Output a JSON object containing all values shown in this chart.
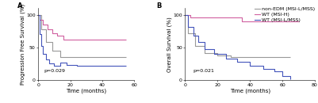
{
  "panel_A": {
    "title": "A",
    "xlabel": "Time (months)",
    "ylabel": "Progression Free Survival (%)",
    "pvalue": "p=0.029",
    "xlim": [
      0,
      60
    ],
    "ylim": [
      0,
      110
    ],
    "yticks": [
      0,
      50,
      100
    ],
    "xticks": [
      0,
      20,
      40,
      60
    ],
    "curves": {
      "pink": {
        "color": "#d060a0",
        "x": [
          0,
          1,
          1,
          3,
          3,
          6,
          6,
          9,
          9,
          12,
          12,
          16,
          16,
          55
        ],
        "y": [
          100,
          100,
          92,
          92,
          85,
          85,
          78,
          78,
          72,
          72,
          68,
          68,
          62,
          62
        ]
      },
      "gray": {
        "color": "#999999",
        "x": [
          0,
          2,
          2,
          5,
          5,
          9,
          9,
          14,
          14,
          55
        ],
        "y": [
          100,
          100,
          78,
          78,
          58,
          58,
          45,
          45,
          36,
          36
        ]
      },
      "blue": {
        "color": "#4455bb",
        "x": [
          0,
          1,
          1,
          2,
          2,
          3,
          3,
          5,
          5,
          7,
          7,
          10,
          10,
          14,
          14,
          18,
          18,
          24,
          24,
          55
        ],
        "y": [
          100,
          100,
          70,
          70,
          52,
          52,
          40,
          40,
          32,
          32,
          26,
          26,
          22,
          22,
          27,
          27,
          24,
          24,
          22,
          22
        ]
      }
    }
  },
  "panel_B": {
    "title": "B",
    "xlabel": "Time (months)",
    "ylabel": "Overall Survival (%)",
    "pvalue": "p=0.021",
    "xlim": [
      0,
      80
    ],
    "ylim": [
      0,
      110
    ],
    "yticks": [
      0,
      50,
      100
    ],
    "xticks": [
      0,
      20,
      40,
      60,
      80
    ],
    "curves": {
      "pink": {
        "color": "#d060a0",
        "x": [
          0,
          3,
          3,
          35,
          35,
          70
        ],
        "y": [
          100,
          100,
          96,
          96,
          90,
          90
        ]
      },
      "gray": {
        "color": "#999999",
        "x": [
          0,
          2,
          2,
          6,
          6,
          12,
          12,
          20,
          20,
          28,
          28,
          65
        ],
        "y": [
          100,
          100,
          72,
          72,
          52,
          52,
          42,
          42,
          38,
          38,
          35,
          35
        ]
      },
      "blue": {
        "color": "#4455bb",
        "x": [
          0,
          2,
          2,
          5,
          5,
          8,
          8,
          12,
          12,
          18,
          18,
          25,
          25,
          32,
          32,
          40,
          40,
          48,
          48,
          55,
          55,
          60,
          60,
          65,
          65
        ],
        "y": [
          100,
          100,
          82,
          82,
          68,
          68,
          58,
          58,
          48,
          48,
          40,
          40,
          33,
          33,
          28,
          28,
          22,
          22,
          18,
          18,
          14,
          14,
          6,
          6,
          2
        ]
      }
    },
    "legend": [
      {
        "label": "non-EDM (MSI-L/MSS)",
        "color": "#999999"
      },
      {
        "label": "WT (MSI-H)",
        "color": "#d060a0"
      },
      {
        "label": "WT (MSI-L/MSS)",
        "color": "#4455bb"
      }
    ]
  },
  "fig_width": 4.01,
  "fig_height": 1.3,
  "dpi": 100,
  "font_size": 6,
  "label_font_size": 5,
  "tick_font_size": 4.5,
  "pval_font_size": 4.5,
  "legend_font_size": 4.5,
  "linewidth": 0.8
}
